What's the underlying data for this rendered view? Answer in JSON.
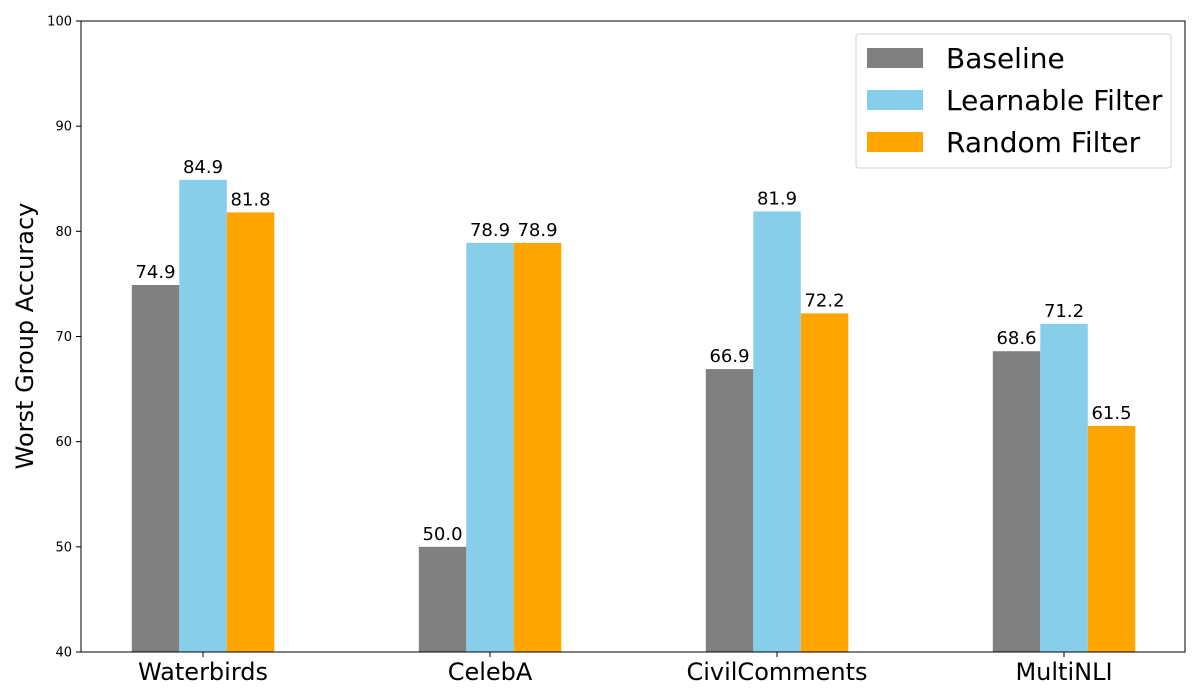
{
  "chart_data": {
    "type": "bar",
    "title": "",
    "xlabel": "",
    "ylabel": "Worst Group Accuracy",
    "ylim": [
      40,
      100
    ],
    "yticks": [
      40,
      50,
      60,
      70,
      80,
      90,
      100
    ],
    "grid": false,
    "legend_position": "top-right",
    "categories": [
      "Waterbirds",
      "CelebA",
      "CivilComments",
      "MultiNLI"
    ],
    "series": [
      {
        "name": "Baseline",
        "color": "#808080",
        "values": [
          74.9,
          50.0,
          66.9,
          68.6
        ],
        "labels": [
          "74.9",
          "50.0",
          "66.9",
          "68.6"
        ]
      },
      {
        "name": "Learnable Filter",
        "color": "#87ceeb",
        "values": [
          84.9,
          78.9,
          81.9,
          71.2
        ],
        "labels": [
          "84.9",
          "78.9",
          "81.9",
          "71.2"
        ]
      },
      {
        "name": "Random Filter",
        "color": "#ffa500",
        "values": [
          81.8,
          78.9,
          72.2,
          61.5
        ],
        "labels": [
          "81.8",
          "78.9",
          "72.2",
          "61.5"
        ]
      }
    ]
  }
}
